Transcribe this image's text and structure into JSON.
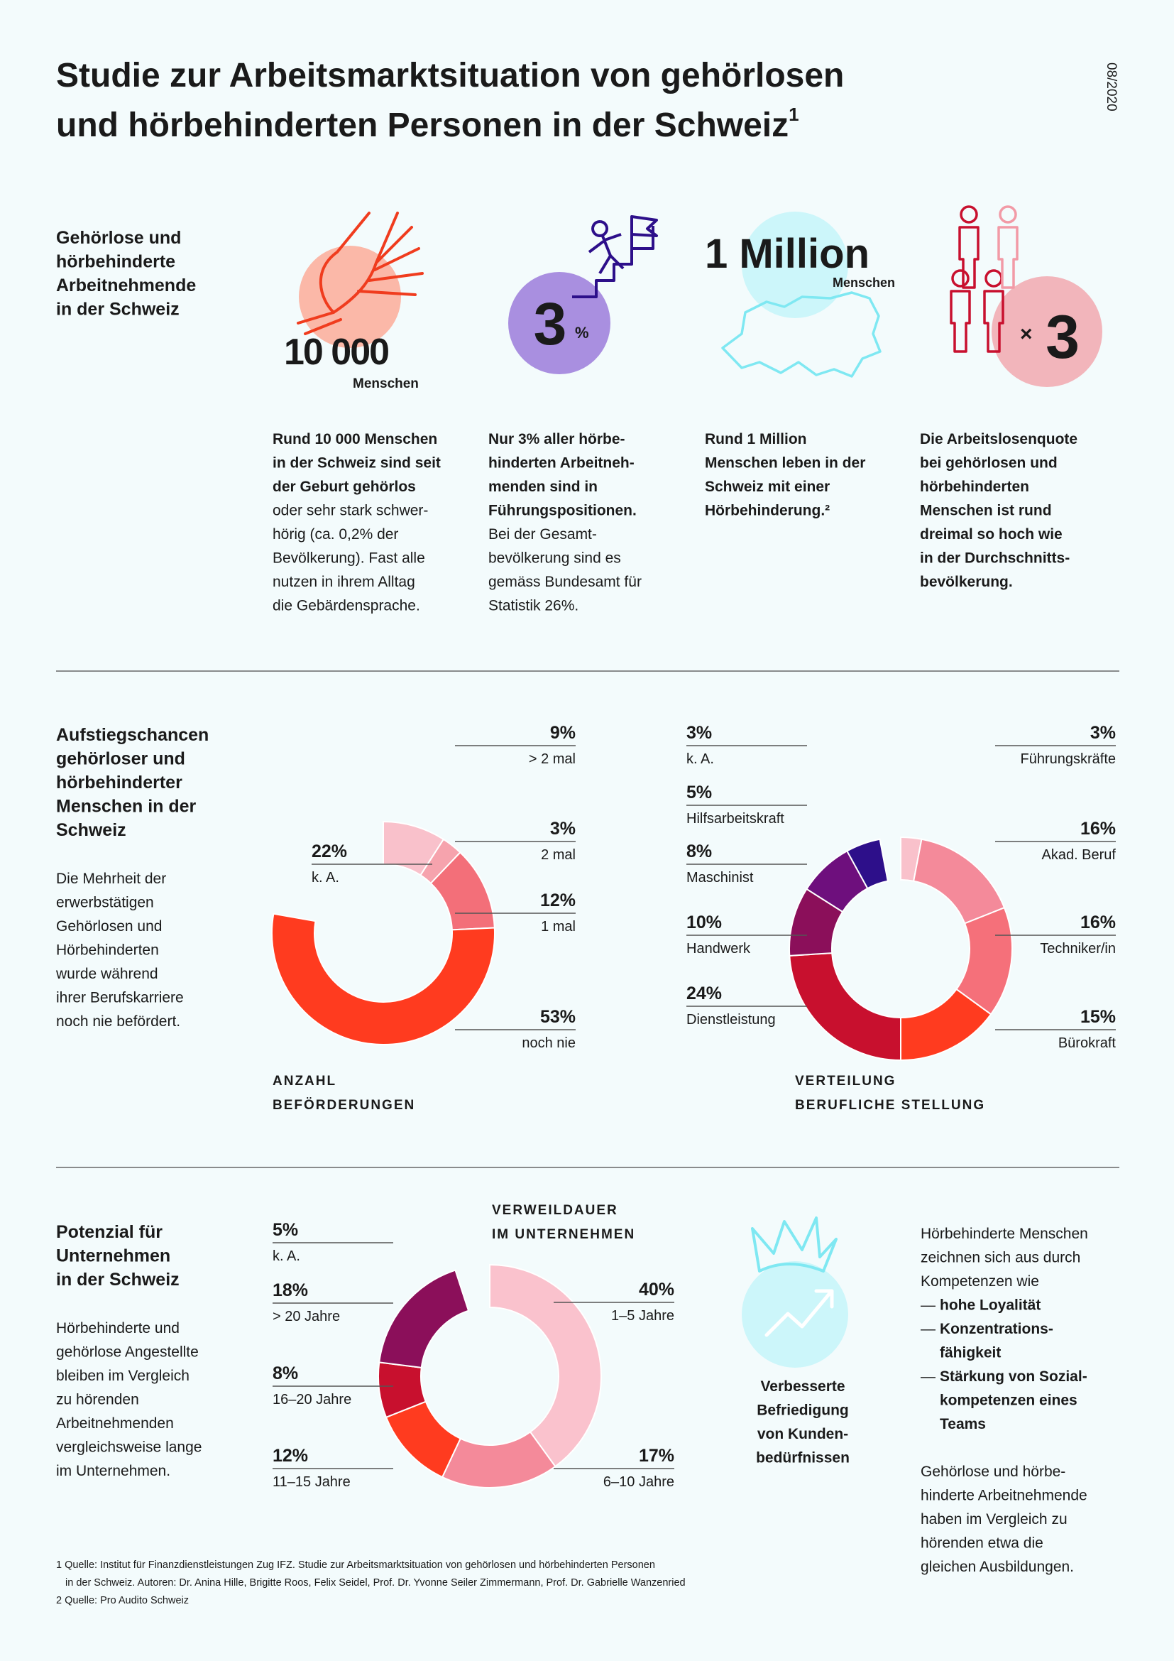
{
  "header": {
    "title_line1": "Studie zur Arbeitsmarktsituation von gehörlosen",
    "title_line2": "und hörbehinderten Personen in der Schweiz",
    "title_sup": "1",
    "date": "08/2020"
  },
  "facts": {
    "heading": [
      "Gehörlose und",
      "hörbehinderte",
      "Arbeitnehmende",
      "in der Schweiz"
    ],
    "items": [
      {
        "number": "10 000",
        "unit": "Menschen",
        "highlight": [
          "Rund 10 000 Menschen",
          "in der Schweiz sind seit",
          "der Geburt gehörlos"
        ],
        "body": [
          "oder sehr stark schwer-",
          "hörig (ca. 0,2% der",
          "Bevölkerung). Fast alle",
          "nutzen in ihrem Alltag",
          "die Gebärdensprache."
        ]
      },
      {
        "number": "3",
        "unit": "%",
        "highlight": [
          "Nur 3% aller hörbe-",
          "hinderten Arbeitneh-",
          "menden sind in",
          "Führungspositionen."
        ],
        "body": [
          "Bei der Gesamt-",
          "bevölkerung sind es",
          "gemäss Bundesamt für",
          "Statistik 26%."
        ]
      },
      {
        "number": "1 Million",
        "unit": "Menschen",
        "highlight": [
          "Rund 1 Million",
          "Menschen leben in der",
          "Schweiz mit einer",
          "Hörbehinderung.²"
        ],
        "body": []
      },
      {
        "number": "3",
        "unit": "×",
        "highlight": [
          "Die Arbeitslosenquote",
          "bei gehörlosen und",
          "hörbehinderten",
          "Menschen ist rund",
          "dreimal so hoch wie",
          "in der Durchschnitts-",
          "bevölkerung."
        ],
        "body": []
      }
    ]
  },
  "section2": {
    "heading": [
      "Aufstiegschancen",
      "gehörloser und",
      "hörbehinderter",
      "Menschen in der",
      "Schweiz"
    ],
    "description": [
      "Die Mehrheit der",
      "erwerbstätigen",
      "Gehörlosen und",
      "Hörbehinderten",
      "wurde während",
      "ihrer Berufskarriere",
      "noch nie befördert."
    ]
  },
  "section3": {
    "heading": [
      "Potenzial für",
      "Unternehmen",
      "in der Schweiz"
    ],
    "description": [
      "Hörbehinderte und",
      "gehörlose Angestellte",
      "bleiben im Vergleich",
      "zu hörenden",
      "Arbeitnehmenden",
      "vergleichsweise lange",
      "im Unternehmen."
    ],
    "benefit": [
      "Verbesserte",
      "Befriedigung",
      "von Kunden-",
      "bedürfnissen"
    ],
    "right_intro": [
      "Hörbehinderte Menschen",
      "zeichnen sich aus durch",
      "Kompetenzen wie"
    ],
    "bullet": "—",
    "right_list": [
      [
        "hohe Loyalität"
      ],
      [
        "Konzentrations-",
        "fähigkeit"
      ],
      [
        "Stärkung von Sozial-",
        "kompetenzen eines",
        "Teams"
      ]
    ],
    "right_outro": [
      "Gehörlose und hörbe-",
      "hinderte Arbeitnehmende",
      "haben im Vergleich zu",
      "hörenden etwa die",
      "gleichen Ausbildungen."
    ]
  },
  "chart_data": [
    {
      "type": "donut",
      "title": [
        "ANZAHL",
        "BEFÖRDERUNGEN"
      ],
      "categories": [
        "> 2 mal",
        "2 mal",
        "1 mal",
        "noch nie",
        "k. A."
      ],
      "values": [
        9,
        3,
        12,
        53,
        22
      ],
      "value_labels": [
        "9%",
        "3%",
        "12%",
        "53%",
        "22%"
      ],
      "colors": [
        "#f9c1cb",
        "#f6a3ad",
        "#f36f79",
        "#ff3b1f",
        null
      ]
    },
    {
      "type": "donut",
      "title": [
        "VERTEILUNG",
        "BERUFLICHE STELLUNG"
      ],
      "categories": [
        "Führungskräfte",
        "Akad. Beruf",
        "Techniker/in",
        "Bürokraft",
        "Dienstleistung",
        "Handwerk",
        "Maschinist",
        "Hilfsarbeitskraft",
        "k. A."
      ],
      "values": [
        3,
        16,
        16,
        15,
        24,
        10,
        8,
        5,
        3
      ],
      "value_labels": [
        "3%",
        "16%",
        "16%",
        "15%",
        "24%",
        "10%",
        "8%",
        "5%",
        "3%"
      ],
      "colors": [
        "#f9c1cb",
        "#f48a9a",
        "#f5707a",
        "#ff3b1f",
        "#c8102e",
        "#8b0f5a",
        "#6e0f7d",
        "#2d0f8a",
        null
      ]
    },
    {
      "type": "donut",
      "title": [
        "VERWEILDAUER",
        "IM UNTERNEHMEN"
      ],
      "categories": [
        "1–5 Jahre",
        "6–10 Jahre",
        "11–15 Jahre",
        "16–20 Jahre",
        "> 20 Jahre",
        "k. A."
      ],
      "values": [
        40,
        17,
        12,
        8,
        18,
        5
      ],
      "value_labels": [
        "40%",
        "17%",
        "12%",
        "8%",
        "18%",
        "5%"
      ],
      "colors": [
        "#fac2cd",
        "#f48a9a",
        "#ff3b1f",
        "#c8102e",
        "#8b0f5a",
        null
      ]
    }
  ],
  "footnotes": [
    "1 Quelle: Institut für Finanzdienstleistungen Zug IFZ. Studie zur Arbeitsmarktsituation von gehörlosen und hörbehinderten Personen",
    "in der Schweiz. Autoren: Dr. Anina Hille, Brigitte Roos, Felix Seidel, Prof. Dr. Yvonne Seiler Zimmermann, Prof. Dr. Gabrielle Wanzenried",
    "2 Quelle: Pro Audito Schweiz"
  ]
}
